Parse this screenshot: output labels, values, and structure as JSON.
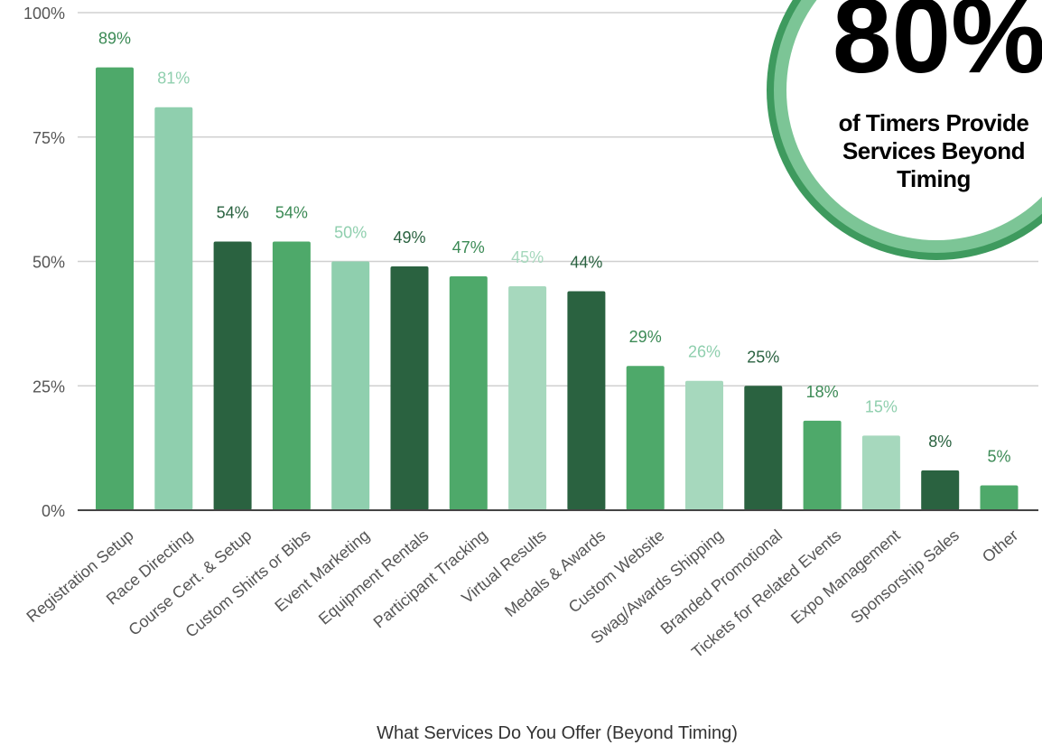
{
  "chart_data": {
    "type": "bar",
    "xlabel": "What Services Do You Offer (Beyond Timing)",
    "ylabel": "",
    "ylim": [
      0,
      100
    ],
    "y_ticks": [
      "0%",
      "25%",
      "50%",
      "75%",
      "100%"
    ],
    "y_tick_values": [
      0,
      25,
      50,
      75,
      100
    ],
    "grid": true,
    "categories": [
      "Registration Setup",
      "Race Directing",
      "Course Cert. & Setup",
      "Custom Shirts or Bibs",
      "Event Marketing",
      "Equipment Rentals",
      "Participant Tracking",
      "Virtual Results",
      "Medals & Awards",
      "Custom Website",
      "Swag/Awards Shipping",
      "Branded Promotional",
      "Tickets for Related Events",
      "Expo Management",
      "Sponsorship Sales",
      "Other"
    ],
    "values": [
      89,
      81,
      54,
      54,
      50,
      49,
      47,
      45,
      44,
      29,
      26,
      25,
      18,
      15,
      8,
      5
    ],
    "value_labels": [
      "89%",
      "81%",
      "54%",
      "54%",
      "50%",
      "49%",
      "47%",
      "45%",
      "44%",
      "29%",
      "26%",
      "25%",
      "18%",
      "15%",
      "8%",
      "5%"
    ],
    "bar_colors": [
      "#4ea96a",
      "#8fcfae",
      "#2a6240",
      "#4ea96a",
      "#8fcfae",
      "#2a6240",
      "#4ea96a",
      "#a6d8bd",
      "#2a6240",
      "#4ea96a",
      "#a6d8bd",
      "#2a6240",
      "#4ea96a",
      "#a6d8bd",
      "#2a6240",
      "#4ea96a"
    ],
    "label_colors": [
      "#3b8a55",
      "#8fcfae",
      "#2a6240",
      "#3b8a55",
      "#8fcfae",
      "#2a6240",
      "#3b8a55",
      "#a6d8bd",
      "#2a6240",
      "#3b8a55",
      "#8fcfae",
      "#2a6240",
      "#3b8a55",
      "#8fcfae",
      "#2a6240",
      "#3b8a55"
    ],
    "axis_color": "#444444",
    "grid_color": "#d0d0d0"
  },
  "badge": {
    "big_text": "80%",
    "lines": [
      "of Timers Provide",
      "Services Beyond",
      "Timing"
    ],
    "ring_color": "#3e9a5e",
    "ring_light_color": "#7cc596",
    "fill_color": "#ffffff"
  }
}
